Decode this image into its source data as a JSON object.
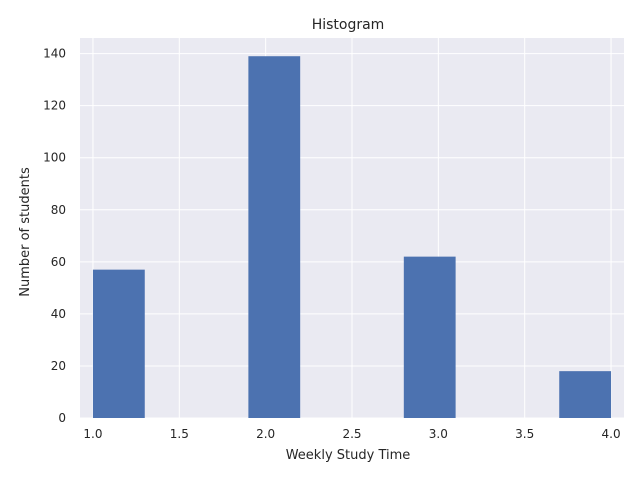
{
  "chart_data": {
    "type": "bar",
    "title": "Histogram",
    "xlabel": "Weekly Study Time",
    "ylabel": "Number of students",
    "bins": [
      {
        "start": 1.0,
        "end": 1.3,
        "value": 57
      },
      {
        "start": 1.3,
        "end": 1.6,
        "value": 0
      },
      {
        "start": 1.6,
        "end": 1.9,
        "value": 0
      },
      {
        "start": 1.9,
        "end": 2.2,
        "value": 139
      },
      {
        "start": 2.2,
        "end": 2.5,
        "value": 0
      },
      {
        "start": 2.5,
        "end": 2.8,
        "value": 0
      },
      {
        "start": 2.8,
        "end": 3.1,
        "value": 62
      },
      {
        "start": 3.1,
        "end": 3.4,
        "value": 0
      },
      {
        "start": 3.4,
        "end": 3.7,
        "value": 0
      },
      {
        "start": 3.7,
        "end": 4.0,
        "value": 18
      }
    ],
    "xlim": [
      0.925,
      4.075
    ],
    "ylim": [
      0,
      146
    ],
    "xticks": [
      "1.0",
      "1.5",
      "2.0",
      "2.5",
      "3.0",
      "3.5",
      "4.0"
    ],
    "yticks": [
      "0",
      "20",
      "40",
      "60",
      "80",
      "100",
      "120",
      "140"
    ],
    "grid": true,
    "bar_color": "#4c72b0",
    "background_color": "#eaeaf2"
  }
}
